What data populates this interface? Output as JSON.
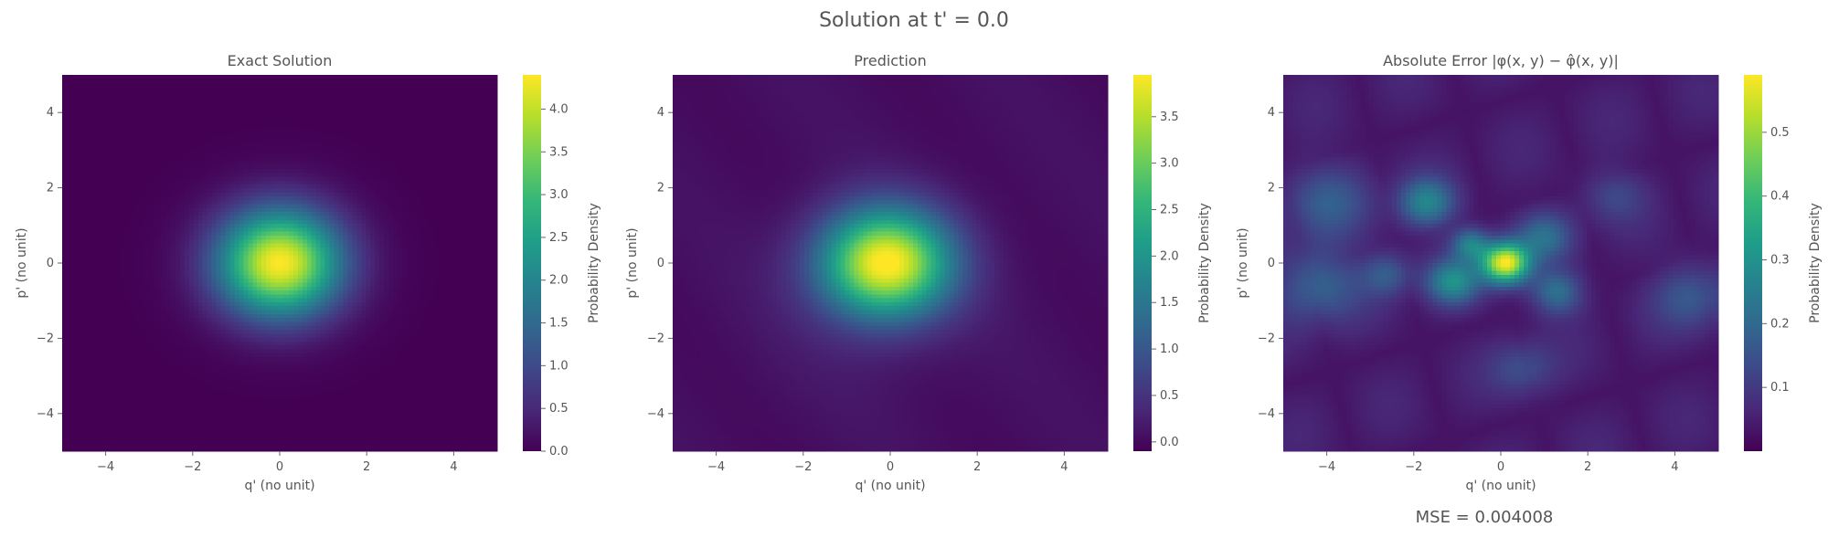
{
  "figure": {
    "suptitle": "Solution at t' = 0.0",
    "mse_note": "MSE = 0.004008"
  },
  "colormap": {
    "name": "viridis",
    "stops": [
      "#440154",
      "#482878",
      "#3e4989",
      "#31688e",
      "#26828e",
      "#1f9e89",
      "#35b779",
      "#6ece58",
      "#b5de2b",
      "#fde725"
    ]
  },
  "chart_data": [
    {
      "type": "heatmap",
      "title": "Exact Solution",
      "xlabel": "q' (no unit)",
      "ylabel": "p' (no unit)",
      "xlim": [
        -5,
        5
      ],
      "ylim": [
        -5,
        5
      ],
      "xticks": [
        -4,
        -2,
        0,
        2,
        4
      ],
      "yticks": [
        -4,
        -2,
        0,
        2,
        4
      ],
      "colorbar_label": "Probability Density",
      "colorbar_range": [
        0,
        4.4
      ],
      "colorbar_ticks": [
        "0.0",
        "0.5",
        "1.0",
        "1.5",
        "2.0",
        "2.5",
        "3.0",
        "3.5",
        "4.0"
      ],
      "colorbar_values": [
        0,
        0.5,
        1.0,
        1.5,
        2.0,
        2.5,
        3.0,
        3.5,
        4.0
      ],
      "peak": {
        "q": 0,
        "p": 0,
        "value": 4.4
      },
      "grid": false
    },
    {
      "type": "heatmap",
      "title": "Prediction",
      "xlabel": "q' (no unit)",
      "ylabel": "p' (no unit)",
      "xlim": [
        -5,
        5
      ],
      "ylim": [
        -5,
        5
      ],
      "xticks": [
        -4,
        -2,
        0,
        2,
        4
      ],
      "yticks": [
        -4,
        -2,
        0,
        2,
        4
      ],
      "colorbar_label": "Probability Density",
      "colorbar_range": [
        -0.1,
        3.95
      ],
      "colorbar_ticks": [
        "0.0",
        "0.5",
        "1.0",
        "1.5",
        "2.0",
        "2.5",
        "3.0",
        "3.5"
      ],
      "colorbar_values": [
        0,
        0.5,
        1.0,
        1.5,
        2.0,
        2.5,
        3.0,
        3.5
      ],
      "peak": {
        "q": -0.1,
        "p": 0,
        "value": 3.9
      },
      "grid": false
    },
    {
      "type": "heatmap",
      "title": "Absolute Error |φ(x, y) − φ̂(x, y)|",
      "xlabel": "q' (no unit)",
      "ylabel": "p' (no unit)",
      "xlim": [
        -5,
        5
      ],
      "ylim": [
        -5,
        5
      ],
      "xticks": [
        -4,
        -2,
        0,
        2,
        4
      ],
      "yticks": [
        -4,
        -2,
        0,
        2,
        4
      ],
      "colorbar_label": "Probability Density",
      "colorbar_range": [
        0,
        0.59
      ],
      "colorbar_ticks": [
        "0.1",
        "0.2",
        "0.3",
        "0.4",
        "0.5"
      ],
      "colorbar_values": [
        0.1,
        0.2,
        0.3,
        0.4,
        0.5
      ],
      "peak": {
        "q": 0.1,
        "p": 0,
        "value": 0.59
      },
      "grid": false
    }
  ]
}
